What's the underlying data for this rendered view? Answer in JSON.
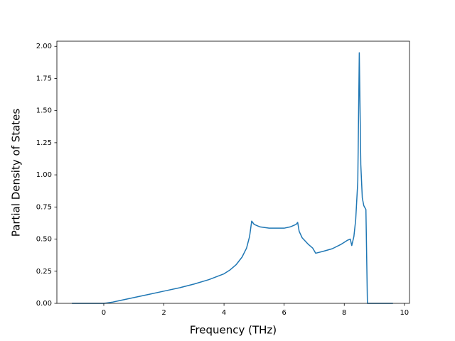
{
  "chart_data": {
    "type": "line",
    "xlabel": "Frequency (THz)",
    "ylabel": "Partial Density of States",
    "series": [
      {
        "color": "#1f77b4",
        "x": [
          -1.06,
          -0.5,
          0,
          0.1,
          0.3,
          0.5,
          1,
          1.5,
          2,
          2.5,
          3,
          3.5,
          4,
          4.2,
          4.4,
          4.6,
          4.75,
          4.85,
          4.92,
          5.0,
          5.2,
          5.5,
          6.0,
          6.2,
          6.4,
          6.45,
          6.5,
          6.6,
          6.8,
          6.95,
          7.05,
          7.3,
          7.6,
          7.9,
          8.1,
          8.2,
          8.25,
          8.32,
          8.38,
          8.45,
          8.5,
          8.55,
          8.6,
          8.65,
          8.72,
          8.77,
          9.0,
          9.62
        ],
        "values": [
          0,
          0,
          0,
          0.003,
          0.01,
          0.02,
          0.045,
          0.07,
          0.095,
          0.12,
          0.15,
          0.185,
          0.23,
          0.26,
          0.3,
          0.36,
          0.43,
          0.52,
          0.64,
          0.615,
          0.595,
          0.585,
          0.585,
          0.595,
          0.615,
          0.63,
          0.56,
          0.51,
          0.46,
          0.43,
          0.39,
          0.405,
          0.425,
          0.46,
          0.49,
          0.5,
          0.45,
          0.52,
          0.65,
          0.95,
          1.95,
          1.08,
          0.82,
          0.76,
          0.73,
          0,
          0,
          0
        ]
      }
    ],
    "xlim": [
      -1.56,
      10.17
    ],
    "ylim": [
      0,
      2.04
    ],
    "xticks": [
      0,
      2,
      4,
      6,
      8,
      10
    ],
    "yticks": [
      {
        "value": 0,
        "label": "0.00"
      },
      {
        "value": 0.25,
        "label": "0.25"
      },
      {
        "value": 0.5,
        "label": "0.50"
      },
      {
        "value": 0.75,
        "label": "0.75"
      },
      {
        "value": 1,
        "label": "1.00"
      },
      {
        "value": 1.25,
        "label": "1.25"
      },
      {
        "value": 1.5,
        "label": "1.50"
      },
      {
        "value": 1.75,
        "label": "1.75"
      },
      {
        "value": 2,
        "label": "2.00"
      }
    ],
    "grid": false
  }
}
